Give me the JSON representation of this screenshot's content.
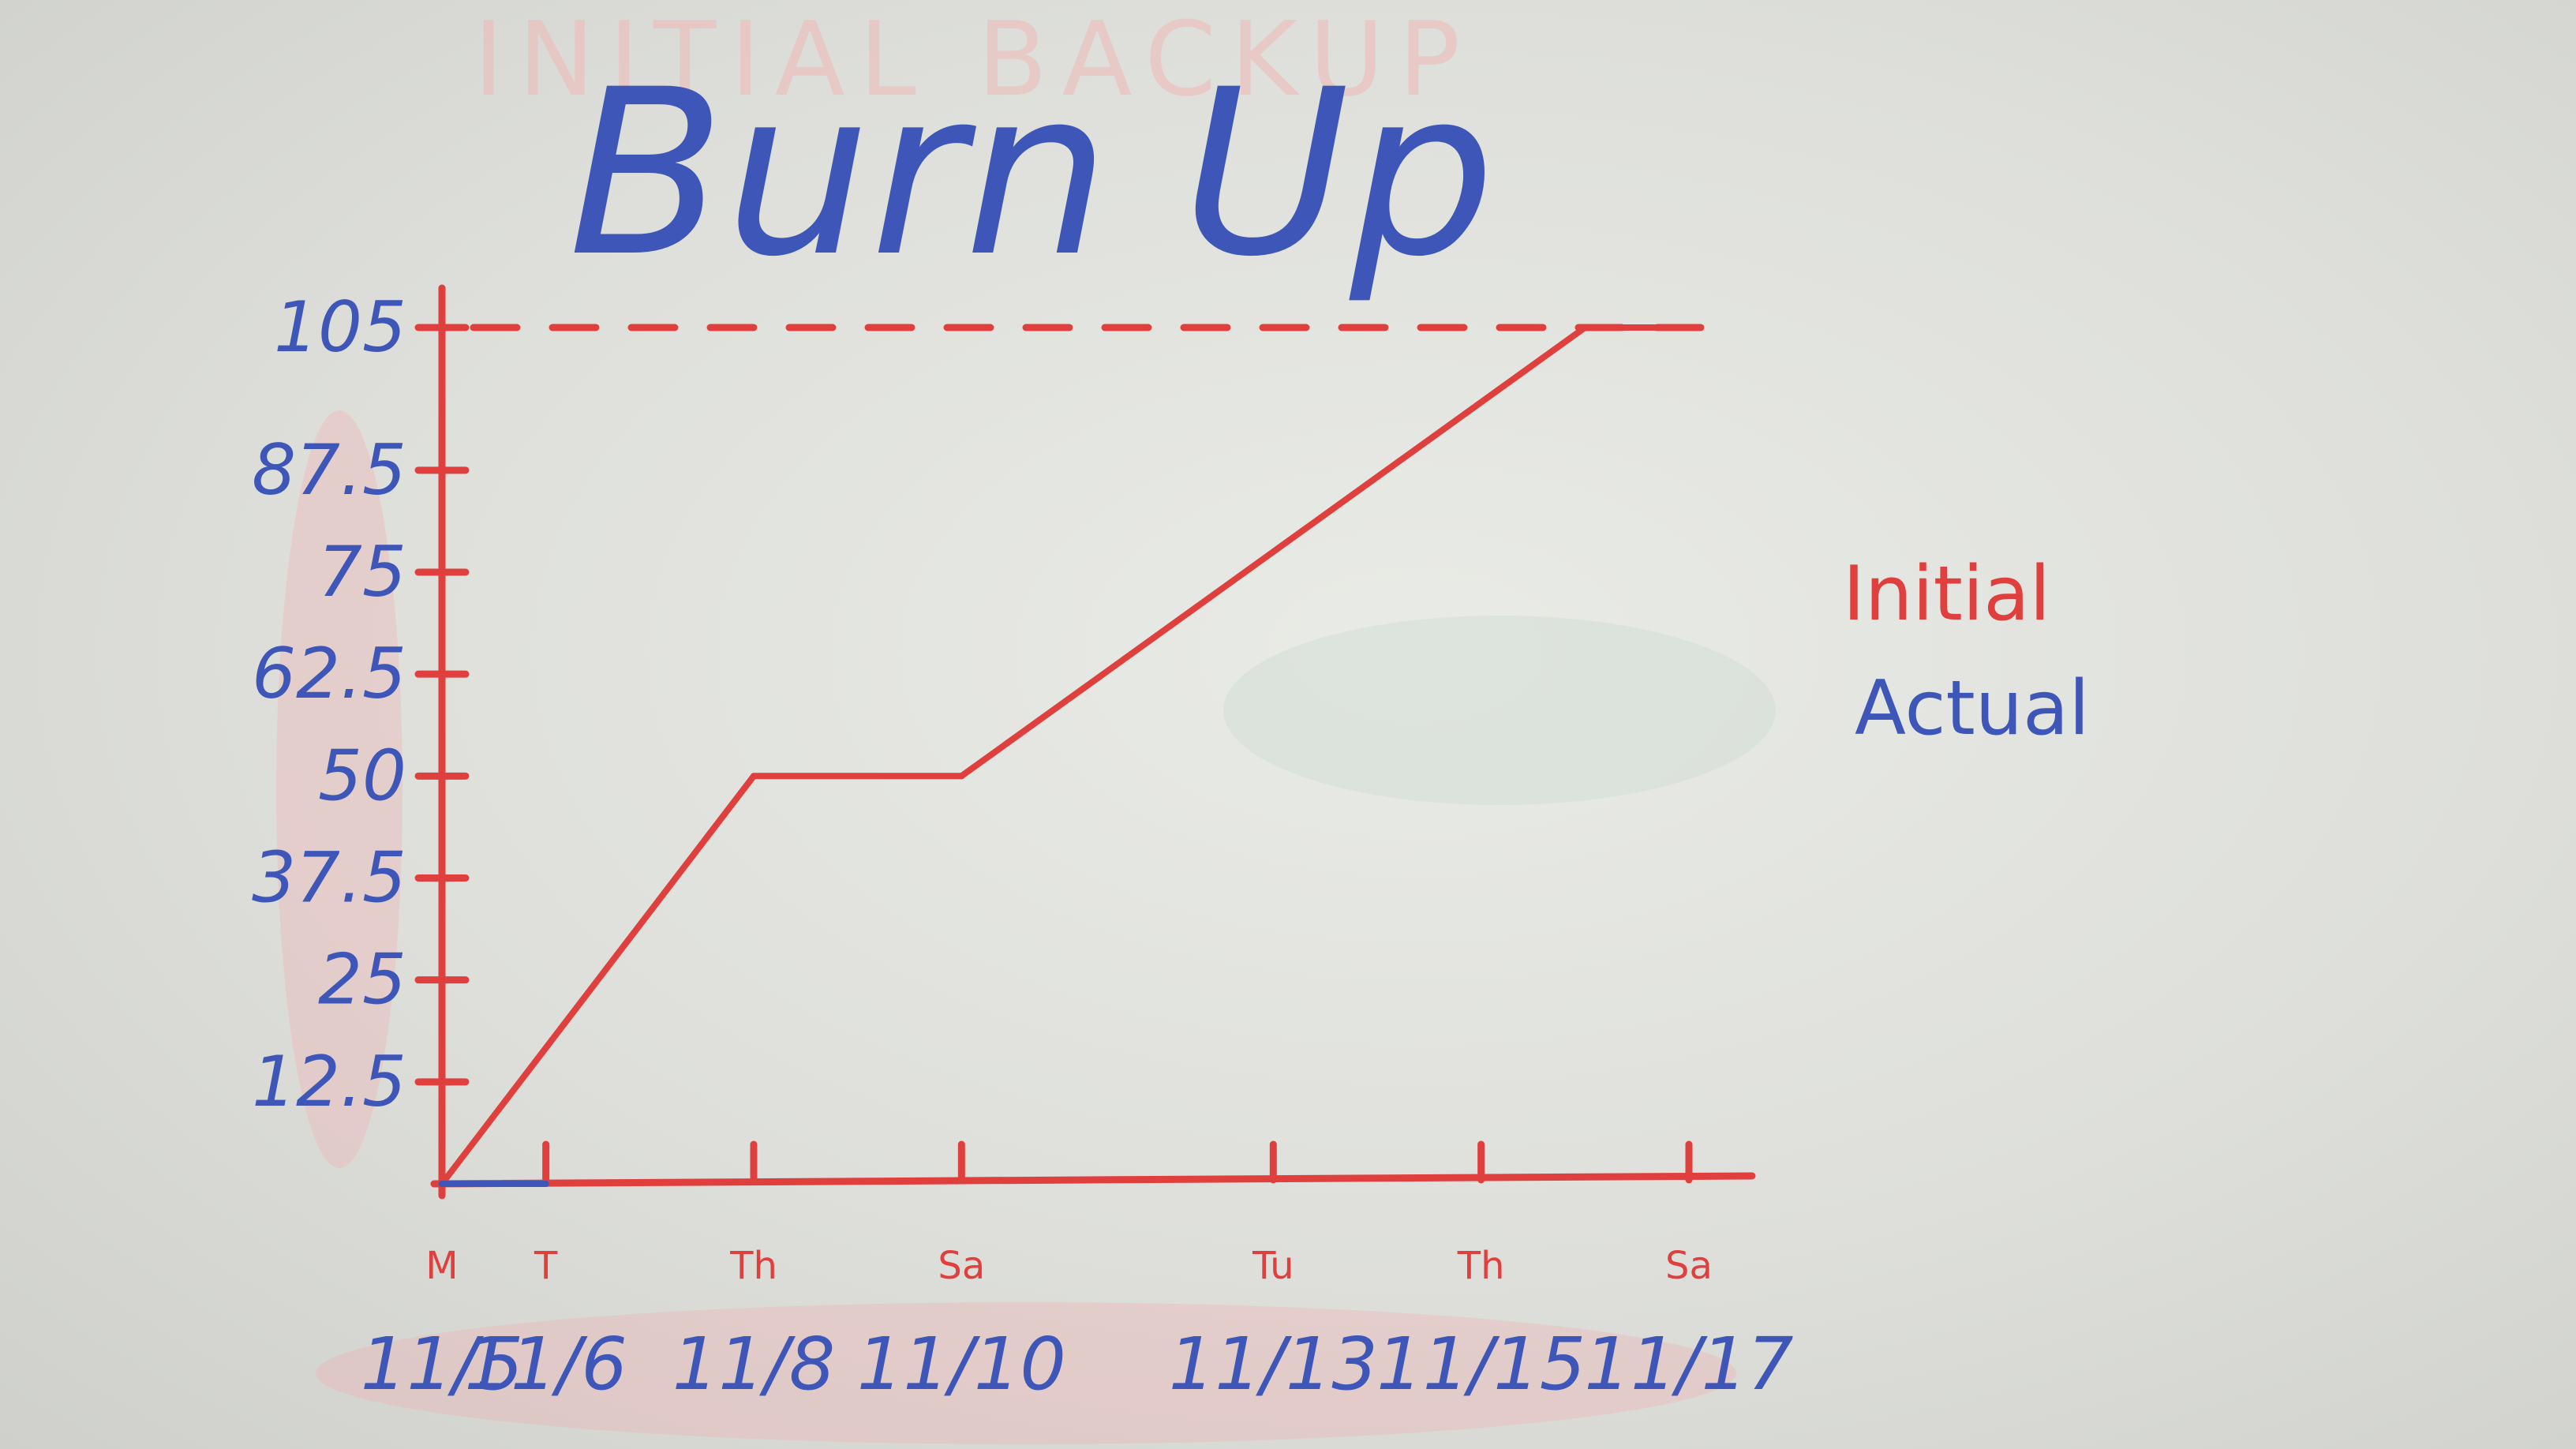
{
  "chart_data": {
    "type": "line",
    "title": "Burn Up",
    "faint_heading": "INITIAL BACKUP",
    "y_ticks": [
      "105",
      "87.5",
      "75",
      "62.5",
      "50",
      "37.5",
      "25",
      "12.5"
    ],
    "x_ticks": [
      {
        "day": "M",
        "date": "11/5"
      },
      {
        "day": "T",
        "date": "11/6"
      },
      {
        "day": "Th",
        "date": "11/8"
      },
      {
        "day": "Sa",
        "date": "11/10"
      },
      {
        "day": "Tu",
        "date": "11/13"
      },
      {
        "day": "Th",
        "date": "11/15"
      },
      {
        "day": "Sa",
        "date": "11/17"
      }
    ],
    "ylim": [
      0,
      105
    ],
    "scope_line": {
      "style": "dashed",
      "value": 105
    },
    "series": [
      {
        "name": "Initial",
        "color": "#e0403d",
        "points": [
          [
            "11/5",
            0
          ],
          [
            "11/8",
            50
          ],
          [
            "11/10",
            50
          ],
          [
            "11/16",
            105
          ],
          [
            "11/17",
            105
          ]
        ]
      },
      {
        "name": "Actual",
        "color": "#3d56b8",
        "points": [
          [
            "11/5",
            0
          ],
          [
            "11/6",
            0
          ]
        ]
      }
    ],
    "legend": {
      "placement": "right",
      "entries": [
        "Initial",
        "Actual"
      ]
    }
  }
}
